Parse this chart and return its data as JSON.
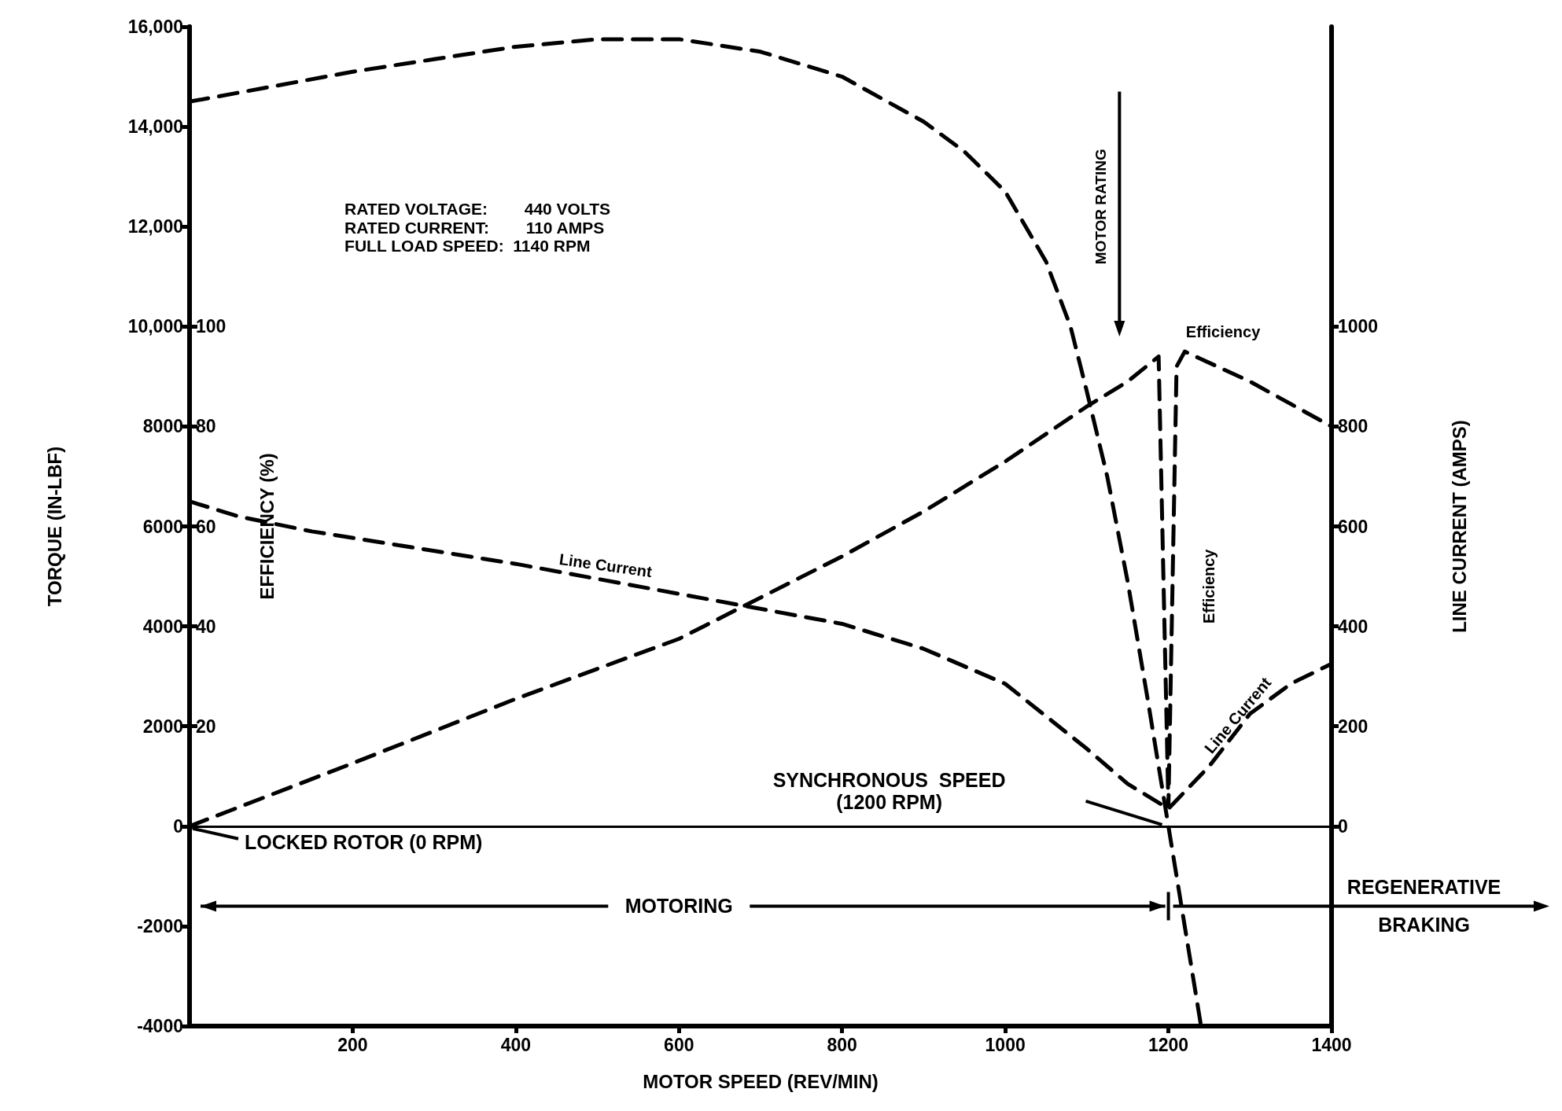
{
  "chart_data": {
    "type": "line",
    "xlabel": "MOTOR SPEED (REV/MIN)",
    "ylabel": "TORQUE (IN-LBF)",
    "y2label": "EFFICIENCY (%)",
    "y3label": "LINE CURRENT (AMPS)",
    "xlim": [
      0,
      1400
    ],
    "xticks": [
      200,
      400,
      600,
      800,
      1000,
      1200,
      1400
    ],
    "ylim": [
      -4000,
      16000
    ],
    "yticks": [
      {
        "value": -4000,
        "label": "-4000"
      },
      {
        "value": -2000,
        "label": "-2000"
      },
      0,
      2000,
      4000,
      6000,
      8000,
      {
        "value": 10000,
        "label": "10,000"
      },
      {
        "value": 12000,
        "label": "12,000"
      },
      {
        "value": 14000,
        "label": "14,000"
      },
      {
        "value": 16000,
        "label": "16,000"
      }
    ],
    "y2lim": [
      -40,
      160
    ],
    "y2ticks": [
      {
        "value": 0,
        "label": null
      },
      20,
      40,
      60,
      80,
      100
    ],
    "y3lim": [
      -400,
      1600
    ],
    "y3ticks": [
      0,
      200,
      400,
      600,
      800,
      1000
    ],
    "series": [
      {
        "color": "#000000",
        "x": [
          0,
          100,
          200,
          300,
          400,
          500,
          600,
          700,
          800,
          900,
          950,
          1000,
          1050,
          1080,
          1100,
          1125,
          1150,
          1175,
          1200,
          1225,
          1240
        ],
        "values": [
          14500,
          14800,
          15100,
          15350,
          15600,
          15750,
          15750,
          15500,
          15000,
          14100,
          13500,
          12700,
          11300,
          10000,
          8700,
          7000,
          4900,
          2500,
          0,
          -2500,
          -4000
        ]
      },
      {
        "name": "Efficiency",
        "color": "#000000",
        "axis": "y2",
        "x": [
          0,
          200,
          400,
          600,
          800,
          900,
          1000,
          1100,
          1150,
          1188,
          1200,
          1210,
          1220,
          1300,
          1400
        ],
        "values": [
          0,
          12.6,
          25.5,
          37.5,
          54,
          63,
          73,
          84,
          89,
          94,
          4,
          92,
          95,
          89,
          80
        ]
      },
      {
        "name": "Line Current",
        "color": "#000000",
        "axis": "y3",
        "x": [
          0,
          60,
          150,
          400,
          600,
          800,
          900,
          1000,
          1100,
          1150,
          1200,
          1250,
          1300,
          1350,
          1400
        ],
        "values": [
          650,
          620,
          590,
          525,
          465,
          405,
          355,
          285,
          155,
          85,
          35,
          120,
          225,
          285,
          325
        ]
      }
    ],
    "ref_lines": [
      {
        "axis": "y",
        "value": 0
      }
    ],
    "annotations": [
      "RATED VOLTAGE:        440 VOLTS",
      "RATED CURRENT:        110 AMPS",
      "FULL LOAD SPEED:  1140 RPM",
      "MOTOR RATING",
      "SYNCHRONOUS  SPEED\n(1200 RPM)",
      {
        "text": "LOCKED ROTOR (0 RPM)",
        "x": 0,
        "y": 0
      },
      "MOTORING",
      "REGENERATIVE\nBRAKING"
    ],
    "line_style": "dashed",
    "marker": "none",
    "grid": false,
    "legend": false
  }
}
